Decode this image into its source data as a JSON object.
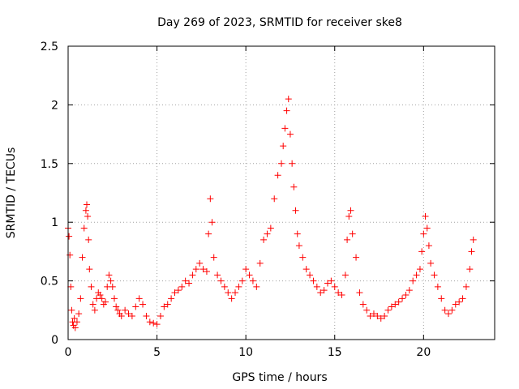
{
  "chart_data": {
    "type": "scatter",
    "title": "Day 269 of 2023, SRMTID for receiver ske8",
    "xlabel": "GPS time / hours",
    "ylabel": "SRMTID / TECUs",
    "xlim": [
      0,
      24
    ],
    "ylim": [
      0,
      2.5
    ],
    "xticks": [
      0,
      5,
      10,
      15,
      20
    ],
    "xtick_labels": [
      "0",
      "5",
      "10",
      "15",
      "20"
    ],
    "yticks": [
      0,
      0.5,
      1,
      1.5,
      2,
      2.5
    ],
    "ytick_labels": [
      "0",
      "0.5",
      "1",
      "1.5",
      "2",
      "2.5"
    ],
    "grid": true,
    "marker": "+",
    "color": "#ff0000",
    "series": [
      {
        "name": "ske8",
        "x": [
          0.0,
          0.05,
          0.1,
          0.15,
          0.2,
          0.25,
          0.3,
          0.35,
          0.4,
          0.5,
          0.6,
          0.7,
          0.8,
          0.9,
          1.0,
          1.05,
          1.1,
          1.15,
          1.2,
          1.3,
          1.4,
          1.5,
          1.6,
          1.7,
          1.8,
          1.9,
          2.0,
          2.1,
          2.2,
          2.3,
          2.4,
          2.5,
          2.6,
          2.7,
          2.8,
          2.9,
          3.0,
          3.2,
          3.4,
          3.6,
          3.8,
          4.0,
          4.2,
          4.4,
          4.6,
          4.8,
          5.0,
          5.2,
          5.4,
          5.6,
          5.8,
          6.0,
          6.2,
          6.4,
          6.6,
          6.8,
          7.0,
          7.2,
          7.4,
          7.6,
          7.8,
          7.9,
          8.0,
          8.1,
          8.2,
          8.4,
          8.6,
          8.8,
          9.0,
          9.2,
          9.4,
          9.6,
          9.8,
          10.0,
          10.2,
          10.4,
          10.6,
          10.8,
          11.0,
          11.2,
          11.4,
          11.6,
          11.8,
          12.0,
          12.1,
          12.2,
          12.3,
          12.4,
          12.5,
          12.6,
          12.7,
          12.8,
          12.9,
          13.0,
          13.2,
          13.4,
          13.6,
          13.8,
          14.0,
          14.2,
          14.4,
          14.6,
          14.8,
          15.0,
          15.2,
          15.4,
          15.6,
          15.7,
          15.8,
          15.9,
          16.0,
          16.2,
          16.4,
          16.6,
          16.8,
          17.0,
          17.2,
          17.4,
          17.6,
          17.8,
          18.0,
          18.2,
          18.4,
          18.6,
          18.8,
          19.0,
          19.2,
          19.4,
          19.6,
          19.8,
          19.9,
          20.0,
          20.1,
          20.2,
          20.3,
          20.4,
          20.6,
          20.8,
          21.0,
          21.2,
          21.4,
          21.6,
          21.8,
          22.0,
          22.2,
          22.4,
          22.6,
          22.7,
          22.8
        ],
        "y": [
          0.95,
          0.88,
          0.72,
          0.45,
          0.25,
          0.15,
          0.12,
          0.18,
          0.1,
          0.15,
          0.22,
          0.35,
          0.7,
          0.95,
          1.1,
          1.15,
          1.05,
          0.85,
          0.6,
          0.45,
          0.3,
          0.25,
          0.35,
          0.4,
          0.38,
          0.35,
          0.3,
          0.32,
          0.45,
          0.55,
          0.5,
          0.45,
          0.35,
          0.28,
          0.25,
          0.22,
          0.2,
          0.25,
          0.22,
          0.2,
          0.28,
          0.35,
          0.3,
          0.2,
          0.15,
          0.14,
          0.13,
          0.2,
          0.28,
          0.3,
          0.35,
          0.4,
          0.42,
          0.45,
          0.5,
          0.48,
          0.55,
          0.6,
          0.65,
          0.6,
          0.58,
          0.9,
          1.2,
          1.0,
          0.7,
          0.55,
          0.5,
          0.45,
          0.4,
          0.35,
          0.4,
          0.45,
          0.5,
          0.6,
          0.55,
          0.5,
          0.45,
          0.65,
          0.85,
          0.9,
          0.95,
          1.2,
          1.4,
          1.5,
          1.65,
          1.8,
          1.95,
          2.05,
          1.75,
          1.5,
          1.3,
          1.1,
          0.9,
          0.8,
          0.7,
          0.6,
          0.55,
          0.5,
          0.45,
          0.4,
          0.42,
          0.48,
          0.5,
          0.45,
          0.4,
          0.38,
          0.55,
          0.85,
          1.05,
          1.1,
          0.9,
          0.7,
          0.4,
          0.3,
          0.25,
          0.2,
          0.22,
          0.2,
          0.18,
          0.2,
          0.25,
          0.28,
          0.3,
          0.32,
          0.35,
          0.38,
          0.42,
          0.5,
          0.55,
          0.6,
          0.75,
          0.9,
          1.05,
          0.95,
          0.8,
          0.65,
          0.55,
          0.45,
          0.35,
          0.25,
          0.22,
          0.25,
          0.3,
          0.32,
          0.35,
          0.45,
          0.6,
          0.75,
          0.85
        ]
      }
    ]
  }
}
